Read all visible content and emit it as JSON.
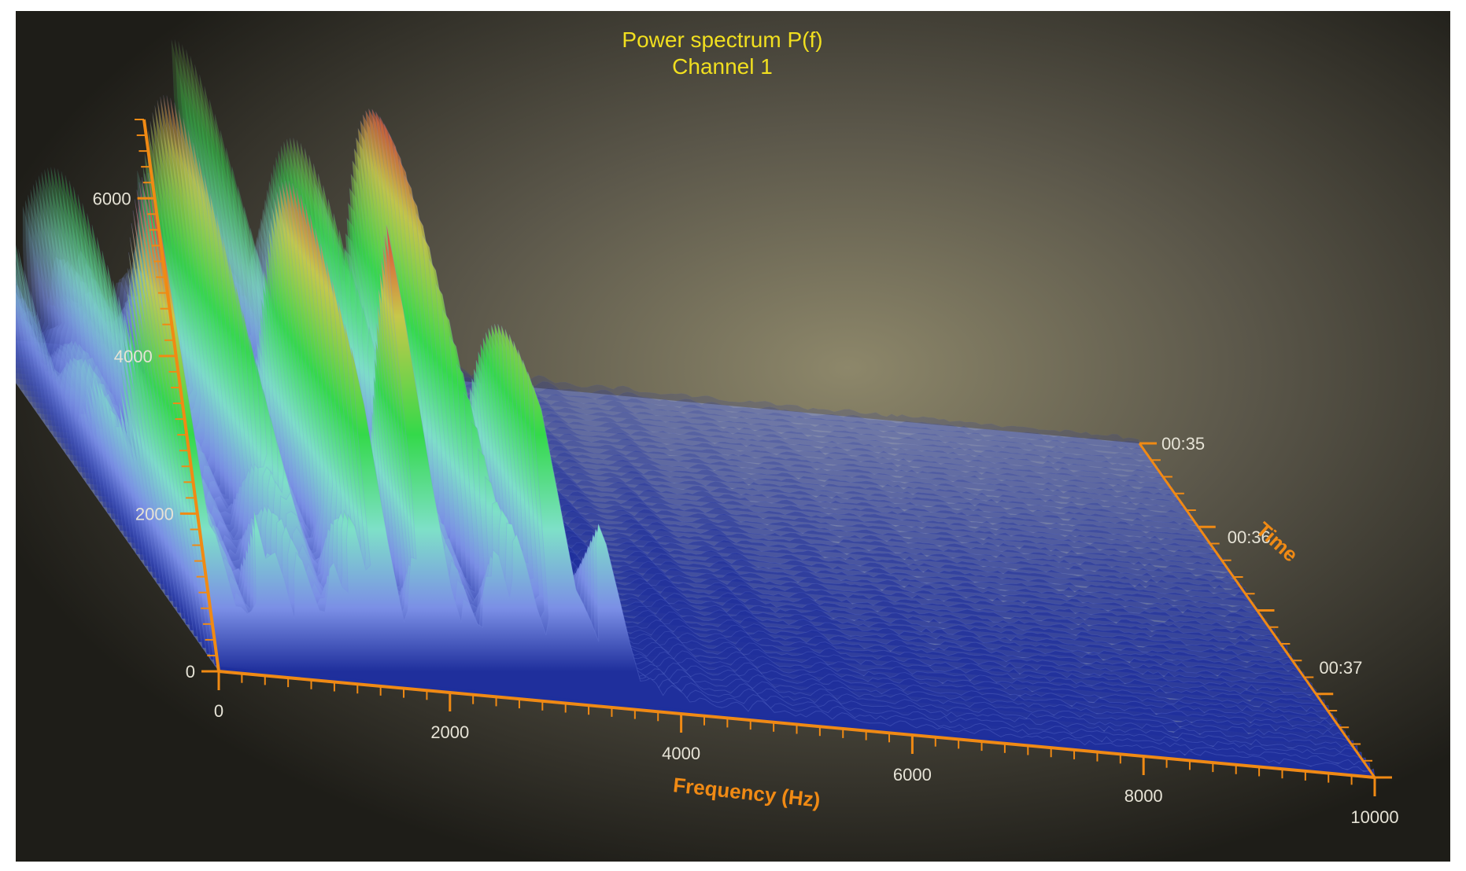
{
  "chart_data": {
    "type": "surface3d",
    "title": "Power spectrum P(f)",
    "subtitle": "Channel 1",
    "xlabel": "Frequency (Hz)",
    "ylabel": "Time",
    "zlabel": "",
    "x_range": [
      0,
      10000
    ],
    "z_range": [
      0,
      7000
    ],
    "x_ticks": [
      "0",
      "2000",
      "4000",
      "6000",
      "8000",
      "10000"
    ],
    "z_ticks": [
      "0",
      "2000",
      "4000",
      "6000"
    ],
    "time_ticks": [
      "00:35",
      "00:36",
      "00:37"
    ],
    "grid": false,
    "colormap": [
      {
        "level": 0,
        "color": "#1f2f9c"
      },
      {
        "level": 800,
        "color": "#7b8fe6"
      },
      {
        "level": 1800,
        "color": "#7ee0c8"
      },
      {
        "level": 3000,
        "color": "#34d94a"
      },
      {
        "level": 4500,
        "color": "#c7c84a"
      },
      {
        "level": 5600,
        "color": "#e04636"
      }
    ],
    "peaks_hz": [
      {
        "x": 0,
        "value": 6300
      },
      {
        "x": 500,
        "value": 4300
      },
      {
        "x": 1050,
        "value": 6500
      },
      {
        "x": 1550,
        "value": 6000
      },
      {
        "x": 2000,
        "value": 6300
      },
      {
        "x": 2450,
        "value": 5500
      },
      {
        "x": 2700,
        "value": 6900
      },
      {
        "x": 3100,
        "value": 4500
      },
      {
        "x": 3500,
        "value": 3000
      },
      {
        "x": 4000,
        "value": 900
      },
      {
        "x": 6000,
        "value": 500
      },
      {
        "x": 10000,
        "value": 300
      }
    ]
  },
  "colors": {
    "axis": "#f08a14",
    "title": "#f1df1f",
    "background": "#2a2922",
    "low_surface": "#7b8fe6"
  }
}
